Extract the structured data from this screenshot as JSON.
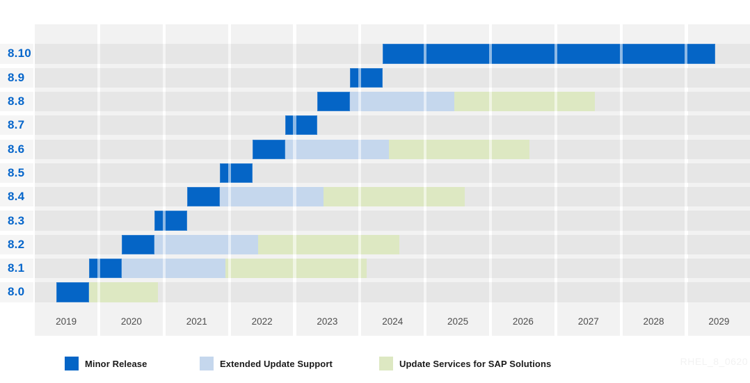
{
  "watermark": "RHEL_8_0620",
  "colors": {
    "minor": "#0565c6",
    "eus": "#c5d7ed",
    "sap": "#dde8c2",
    "release_label": "#0666cb",
    "axis_text": "#4d4d4d",
    "row_stripe": "#e6e6e6",
    "column_block": "#f2f2f2",
    "gutter_stripe": "#f5f5f5"
  },
  "legend": {
    "items": [
      {
        "key": "minor",
        "label": "Minor Release",
        "color": "#0565c6"
      },
      {
        "key": "eus",
        "label": "Extended Update Support",
        "color": "#c5d7ed"
      },
      {
        "key": "sap",
        "label": "Update Services for SAP Solutions",
        "color": "#dde8c2"
      }
    ]
  },
  "chart_data": {
    "type": "bar",
    "variant": "gantt-timeline",
    "title": "",
    "xlabel": "",
    "ylabel": "",
    "x_axis": {
      "unit": "year",
      "ticks": [
        2019,
        2020,
        2021,
        2022,
        2023,
        2024,
        2025,
        2026,
        2027,
        2028,
        2029
      ],
      "range_shown": [
        2019.0,
        2029.95
      ]
    },
    "legend_position": "bottom",
    "grid": "shaded-cells",
    "rows": [
      {
        "release": "8.10",
        "segments": [
          {
            "kind": "minor",
            "start": 2024.33,
            "end": 2029.42
          }
        ]
      },
      {
        "release": "8.9",
        "segments": [
          {
            "kind": "minor",
            "start": 2023.83,
            "end": 2024.33
          }
        ]
      },
      {
        "release": "8.8",
        "segments": [
          {
            "kind": "minor",
            "start": 2023.33,
            "end": 2023.83
          },
          {
            "kind": "eus",
            "start": 2023.83,
            "end": 2025.42
          },
          {
            "kind": "sap",
            "start": 2025.42,
            "end": 2027.58
          }
        ]
      },
      {
        "release": "8.7",
        "segments": [
          {
            "kind": "minor",
            "start": 2022.83,
            "end": 2023.33
          }
        ]
      },
      {
        "release": "8.6",
        "segments": [
          {
            "kind": "minor",
            "start": 2022.33,
            "end": 2022.83
          },
          {
            "kind": "eus",
            "start": 2022.83,
            "end": 2024.42
          },
          {
            "kind": "sap",
            "start": 2024.42,
            "end": 2026.58
          }
        ]
      },
      {
        "release": "8.5",
        "segments": [
          {
            "kind": "minor",
            "start": 2021.83,
            "end": 2022.33
          }
        ]
      },
      {
        "release": "8.4",
        "segments": [
          {
            "kind": "minor",
            "start": 2021.33,
            "end": 2021.83
          },
          {
            "kind": "eus",
            "start": 2021.83,
            "end": 2023.42
          },
          {
            "kind": "sap",
            "start": 2023.42,
            "end": 2025.58
          }
        ]
      },
      {
        "release": "8.3",
        "segments": [
          {
            "kind": "minor",
            "start": 2020.83,
            "end": 2021.33
          }
        ]
      },
      {
        "release": "8.2",
        "segments": [
          {
            "kind": "minor",
            "start": 2020.33,
            "end": 2020.83
          },
          {
            "kind": "eus",
            "start": 2020.83,
            "end": 2022.42
          },
          {
            "kind": "sap",
            "start": 2022.42,
            "end": 2024.58
          }
        ]
      },
      {
        "release": "8.1",
        "segments": [
          {
            "kind": "minor",
            "start": 2019.83,
            "end": 2020.33
          },
          {
            "kind": "eus",
            "start": 2020.33,
            "end": 2021.92
          },
          {
            "kind": "sap",
            "start": 2021.92,
            "end": 2024.08
          }
        ]
      },
      {
        "release": "8.0",
        "segments": [
          {
            "kind": "minor",
            "start": 2019.33,
            "end": 2019.83
          },
          {
            "kind": "sap",
            "start": 2019.83,
            "end": 2020.88
          }
        ]
      }
    ]
  }
}
